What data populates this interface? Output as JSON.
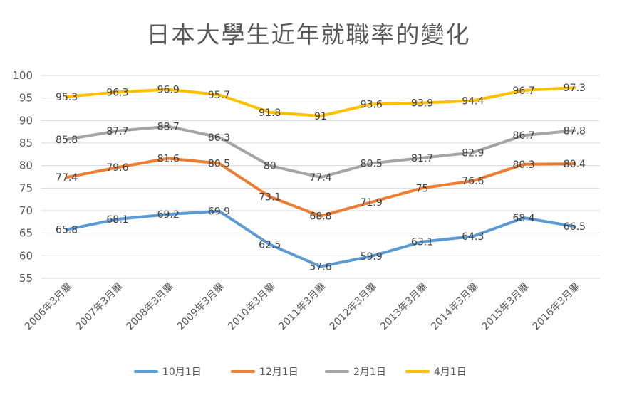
{
  "chart_data": {
    "type": "line",
    "title": "日本大學生近年就職率的變化",
    "categories": [
      "2006年3月畢",
      "2007年3月畢",
      "2008年3月畢",
      "2009年3月畢",
      "2010年3月畢",
      "2011年3月畢",
      "2012年3月畢",
      "2013年3月畢",
      "2014年3月畢",
      "2015年3月畢",
      "2016年3月畢"
    ],
    "ylim": [
      55,
      100
    ],
    "yticks": [
      55,
      60,
      65,
      70,
      75,
      80,
      85,
      90,
      95,
      100
    ],
    "grid": true,
    "legend_position": "bottom",
    "series": [
      {
        "name": "10月1日",
        "color": "#5B9BD5",
        "values": [
          65.8,
          68.1,
          69.2,
          69.9,
          62.5,
          57.6,
          59.9,
          63.1,
          64.3,
          68.4,
          66.5
        ]
      },
      {
        "name": "12月1日",
        "color": "#ED7D31",
        "values": [
          77.4,
          79.6,
          81.6,
          80.5,
          73.1,
          68.8,
          71.9,
          75,
          76.6,
          80.3,
          80.4
        ]
      },
      {
        "name": "2月1日",
        "color": "#A5A5A5",
        "values": [
          85.8,
          87.7,
          88.7,
          86.3,
          80,
          77.4,
          80.5,
          81.7,
          82.9,
          86.7,
          87.8
        ]
      },
      {
        "name": "4月1日",
        "color": "#FFC000",
        "values": [
          95.3,
          96.3,
          96.9,
          95.7,
          91.8,
          91,
          93.6,
          93.9,
          94.4,
          96.7,
          97.3
        ]
      }
    ]
  }
}
